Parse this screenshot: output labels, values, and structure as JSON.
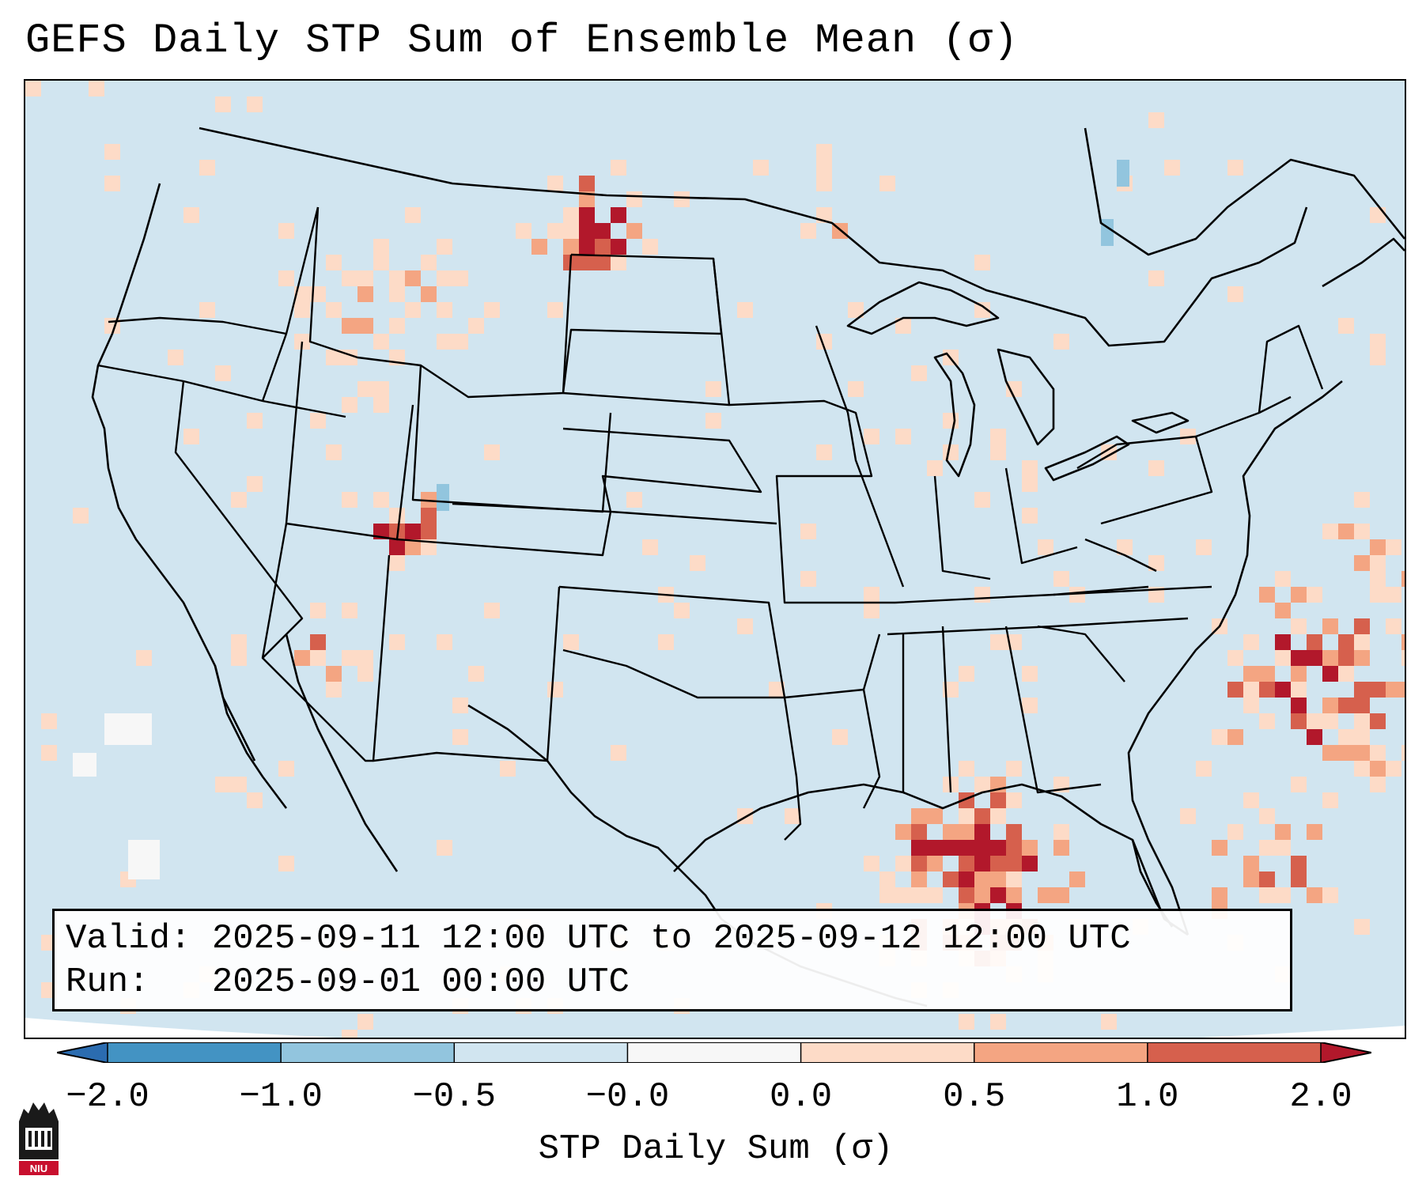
{
  "title": "GEFS Daily STP Sum of Ensemble Mean (σ)",
  "info": {
    "valid_line": "Valid: 2025-09-11 12:00 UTC to 2025-09-12 12:00 UTC",
    "run_line": "Run:   2025-09-01 00:00 UTC"
  },
  "colorbar": {
    "label": "STP Daily Sum (σ)",
    "ticks": [
      "−2.0",
      "−1.0",
      "−0.5",
      "−0.0",
      "0.0",
      "0.5",
      "1.0",
      "2.0"
    ],
    "bins": [
      {
        "range": "< -2.0",
        "color": "#2b6cb0"
      },
      {
        "range": "-2.0 to -1.0",
        "color": "#4393c3"
      },
      {
        "range": "-1.0 to -0.5",
        "color": "#92c5de"
      },
      {
        "range": "-0.5 to -0.0",
        "color": "#d1e5f0"
      },
      {
        "range": "-0.0 to 0.0",
        "color": "#f7f7f7"
      },
      {
        "range": "0.0 to 0.5",
        "color": "#fddbc7"
      },
      {
        "range": "0.5 to 1.0",
        "color": "#f4a582"
      },
      {
        "range": "1.0 to 2.0",
        "color": "#d6604d"
      },
      {
        "range": "> 2.0",
        "color": "#b2182b"
      }
    ]
  },
  "map": {
    "region": "Continental United States",
    "background_value_color": "#d1e5f0"
  },
  "logo": {
    "text": "NIU"
  }
}
